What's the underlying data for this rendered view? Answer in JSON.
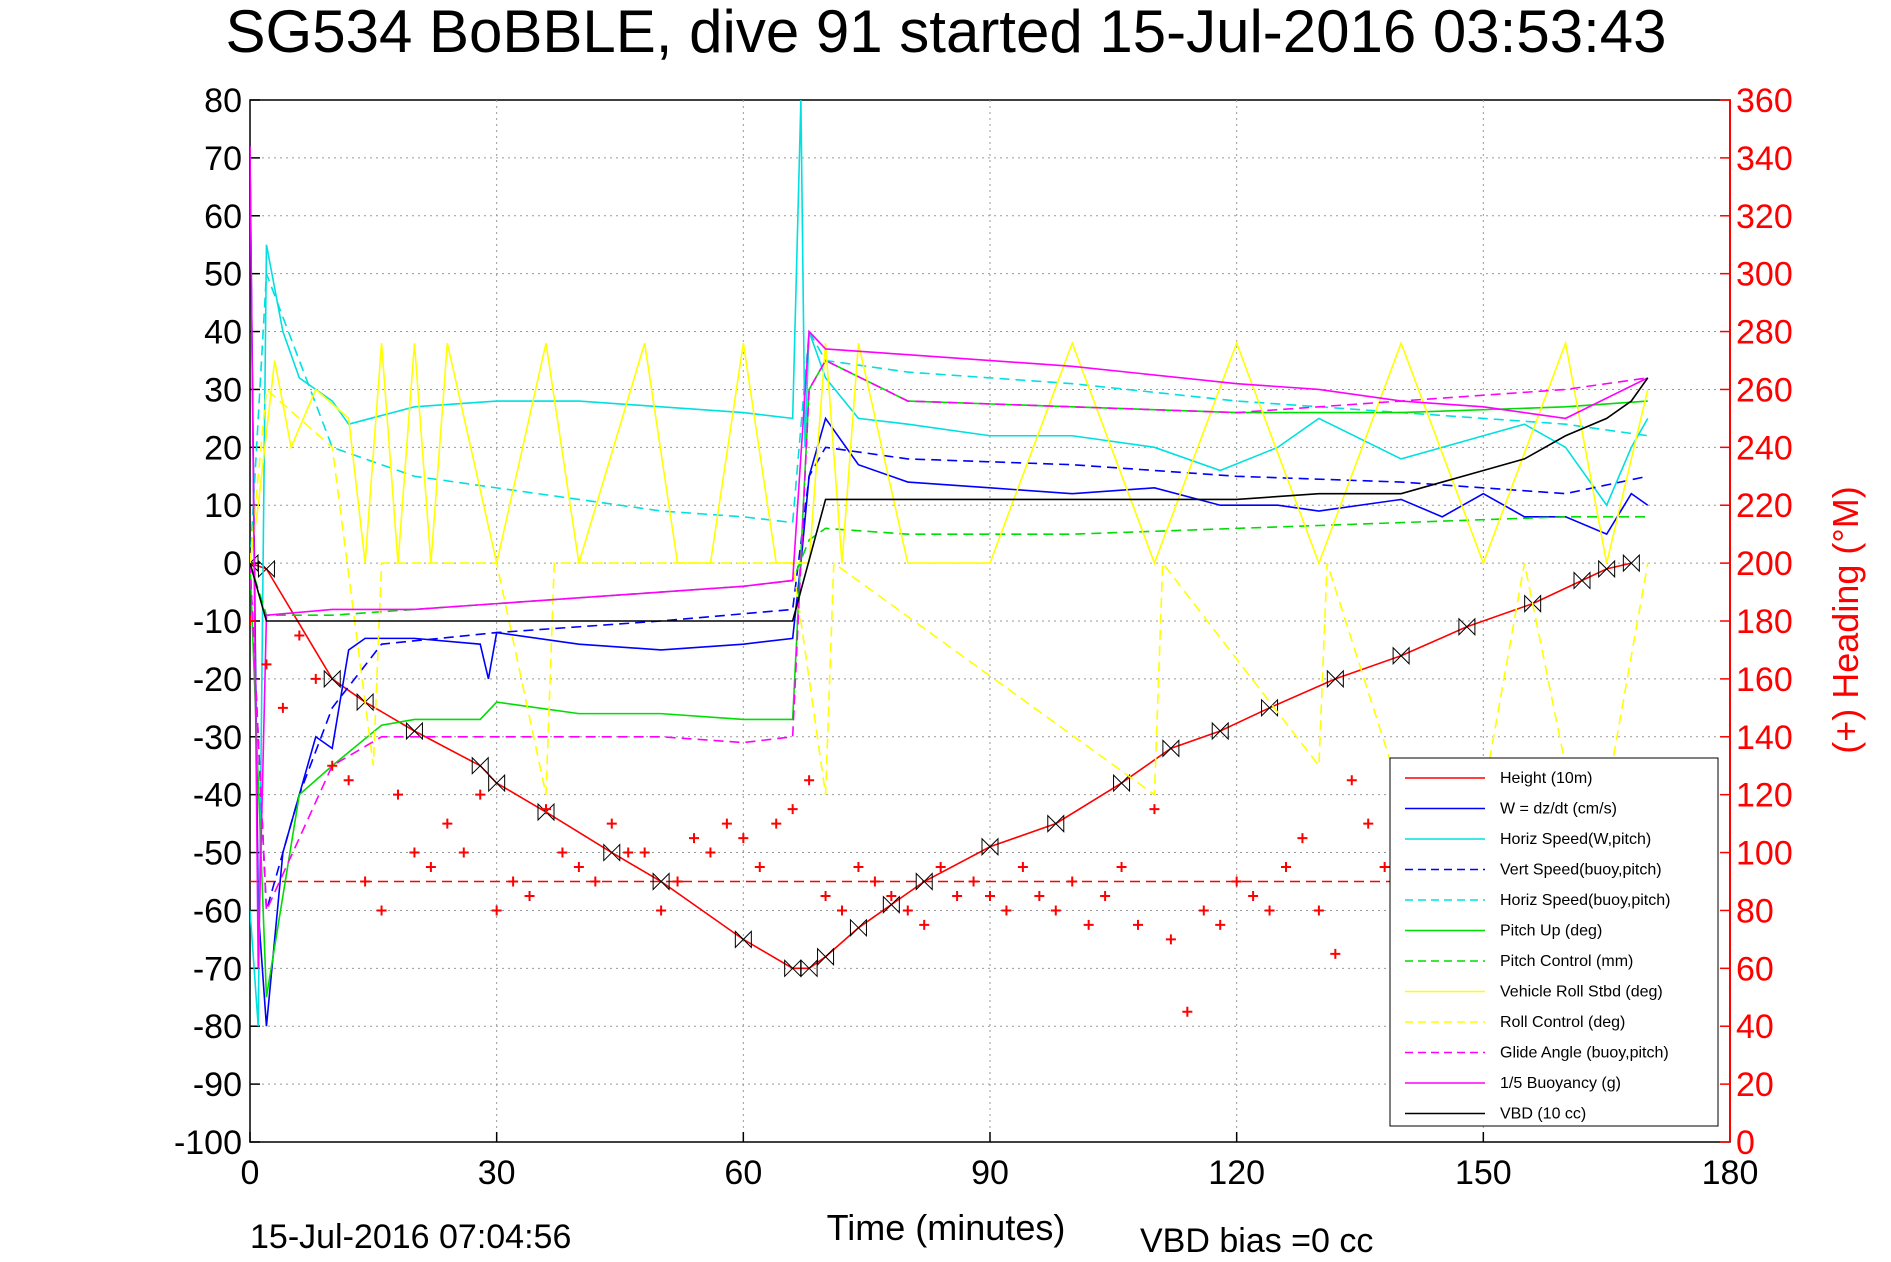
{
  "chart_data": {
    "type": "line",
    "title": "SG534 BoBBLE, dive 91 started 15-Jul-2016 03:53:43",
    "xlabel": "Time (minutes)",
    "ylabel": "",
    "ylabel_right": "(+) Heading (°M)",
    "xlim": [
      0,
      180
    ],
    "ylim": [
      -100,
      80
    ],
    "ylim_right": [
      0,
      360
    ],
    "grid": true,
    "x_ticks": [
      "0",
      "30",
      "60",
      "90",
      "120",
      "150",
      "180"
    ],
    "y_ticks_left": [
      "80",
      "70",
      "60",
      "50",
      "40",
      "30",
      "20",
      "10",
      "0",
      "-10",
      "-20",
      "-30",
      "-40",
      "-50",
      "-60",
      "-70",
      "-80",
      "-90",
      "-100"
    ],
    "y_ticks_right": [
      "360",
      "340",
      "320",
      "300",
      "280",
      "260",
      "240",
      "220",
      "200",
      "180",
      "160",
      "140",
      "120",
      "100",
      "80",
      "60",
      "40",
      "20",
      "0"
    ],
    "legend_position": "lower-right",
    "footer_left": "15-Jul-2016 07:04:56",
    "footer_right": "VBD bias =0 cc",
    "series": [
      {
        "name": "Height (10m)",
        "color": "#ff0000",
        "dash": "solid",
        "marker": "bowtie",
        "x": [
          0,
          2,
          10,
          14,
          20,
          28,
          30,
          36,
          44,
          50,
          60,
          66,
          68,
          70,
          74,
          78,
          82,
          90,
          98,
          106,
          112,
          118,
          124,
          132,
          140,
          148,
          156,
          162,
          165,
          168
        ],
        "y": [
          0,
          -1,
          -20,
          -24,
          -29,
          -35,
          -38,
          -43,
          -50,
          -55,
          -65,
          -70,
          -70,
          -68,
          -63,
          -59,
          -55,
          -49,
          -45,
          -38,
          -32,
          -29,
          -25,
          -20,
          -16,
          -11,
          -7,
          -3,
          -1,
          0
        ]
      },
      {
        "name": "W = dz/dt (cm/s)",
        "color": "#0000ff",
        "dash": "solid",
        "marker": "none",
        "x": [
          0,
          1,
          2,
          4,
          6,
          8,
          10,
          12,
          14,
          20,
          28,
          29,
          30,
          40,
          50,
          60,
          66,
          67,
          68,
          70,
          74,
          80,
          90,
          100,
          110,
          118,
          125,
          130,
          140,
          145,
          150,
          155,
          160,
          165,
          168,
          170
        ],
        "y": [
          70,
          -60,
          -80,
          -50,
          -40,
          -30,
          -32,
          -15,
          -13,
          -13,
          -14,
          -20,
          -12,
          -14,
          -15,
          -14,
          -13,
          0,
          15,
          25,
          17,
          14,
          13,
          12,
          13,
          10,
          10,
          9,
          11,
          8,
          12,
          8,
          8,
          5,
          12,
          10
        ]
      },
      {
        "name": "Horiz Speed(W,pitch)",
        "color": "#00e0e0",
        "dash": "solid",
        "marker": "none",
        "x": [
          0,
          1,
          2,
          4,
          6,
          10,
          12,
          20,
          30,
          40,
          50,
          60,
          66,
          67,
          67.5,
          68,
          70,
          74,
          80,
          90,
          100,
          110,
          118,
          125,
          130,
          140,
          145,
          150,
          155,
          160,
          165,
          168,
          170
        ],
        "y": [
          -60,
          -80,
          55,
          40,
          32,
          28,
          24,
          27,
          28,
          28,
          27,
          26,
          25,
          80,
          20,
          40,
          32,
          25,
          24,
          22,
          22,
          20,
          16,
          20,
          25,
          18,
          20,
          22,
          24,
          20,
          10,
          20,
          25
        ]
      },
      {
        "name": "Vert Speed(buoy,pitch)",
        "color": "#0000ff",
        "dash": "dashed",
        "marker": "none",
        "x": [
          0,
          2,
          6,
          10,
          16,
          30,
          50,
          66,
          68,
          70,
          80,
          100,
          120,
          140,
          160,
          170
        ],
        "y": [
          0,
          -60,
          -40,
          -25,
          -14,
          -12,
          -10,
          -8,
          15,
          20,
          18,
          17,
          15,
          14,
          12,
          15
        ]
      },
      {
        "name": "Horiz Speed(buoy,pitch)",
        "color": "#00e0e0",
        "dash": "dashed",
        "marker": "none",
        "x": [
          0,
          2,
          10,
          20,
          30,
          40,
          50,
          60,
          66,
          68,
          70,
          80,
          100,
          120,
          140,
          160,
          170
        ],
        "y": [
          0,
          50,
          20,
          15,
          13,
          11,
          9,
          8,
          7,
          40,
          35,
          33,
          31,
          28,
          26,
          24,
          22
        ]
      },
      {
        "name": "Pitch Up (deg)",
        "color": "#00dd00",
        "dash": "solid",
        "marker": "none",
        "x": [
          0,
          2,
          6,
          10,
          16,
          20,
          28,
          30,
          40,
          50,
          60,
          66,
          68,
          70,
          80,
          100,
          120,
          140,
          160,
          170
        ],
        "y": [
          0,
          -75,
          -40,
          -35,
          -28,
          -27,
          -27,
          -24,
          -26,
          -26,
          -27,
          -27,
          30,
          35,
          28,
          27,
          26,
          26,
          27,
          28
        ]
      },
      {
        "name": "Pitch Control (mm)",
        "color": "#00dd00",
        "dash": "dashed",
        "marker": "none",
        "x": [
          0,
          2,
          10,
          20,
          30,
          40,
          50,
          60,
          66,
          68,
          70,
          80,
          100,
          120,
          140,
          160,
          170
        ],
        "y": [
          0,
          -9,
          -9,
          -8,
          -7,
          -6,
          -5,
          -4,
          -3,
          4,
          6,
          5,
          5,
          6,
          7,
          8,
          8
        ]
      },
      {
        "name": "Vehicle Roll Stbd (deg)",
        "color": "#ffff00",
        "dash": "solid",
        "marker": "none",
        "x": [
          0,
          1,
          3,
          5,
          8,
          12,
          14,
          16,
          18,
          20,
          22,
          24,
          30,
          36,
          40,
          48,
          52,
          56,
          60,
          64,
          66,
          68,
          70,
          72,
          74,
          80,
          90,
          100,
          110,
          120,
          130,
          140,
          150,
          160,
          165,
          170
        ],
        "y": [
          0,
          10,
          35,
          20,
          30,
          25,
          0,
          38,
          0,
          38,
          0,
          38,
          0,
          38,
          0,
          38,
          0,
          0,
          38,
          0,
          0,
          0,
          38,
          0,
          38,
          0,
          0,
          38,
          0,
          38,
          0,
          38,
          0,
          38,
          0,
          30
        ]
      },
      {
        "name": "Roll Control (deg)",
        "color": "#ffff00",
        "dash": "dashed",
        "marker": "none",
        "x": [
          0,
          2,
          10,
          15,
          16,
          30,
          36,
          37,
          40,
          60,
          66,
          70,
          71,
          110,
          111,
          130,
          131,
          140,
          150,
          155,
          160,
          165,
          170
        ],
        "y": [
          0,
          30,
          20,
          -35,
          0,
          0,
          -40,
          0,
          0,
          0,
          0,
          -40,
          0,
          -40,
          0,
          -35,
          0,
          -40,
          -40,
          0,
          -35,
          -40,
          0
        ]
      },
      {
        "name": "Glide Angle (buoy,pitch)",
        "color": "#ff00ff",
        "dash": "dashed",
        "marker": "none",
        "x": [
          0,
          2,
          10,
          16,
          20,
          30,
          40,
          50,
          60,
          66,
          68,
          70,
          80,
          100,
          120,
          140,
          160,
          170
        ],
        "y": [
          0,
          -60,
          -35,
          -30,
          -30,
          -30,
          -30,
          -30,
          -31,
          -30,
          30,
          35,
          28,
          27,
          26,
          28,
          30,
          32
        ]
      },
      {
        "name": "1/5 Buoyancy (g)",
        "color": "#ff00ff",
        "dash": "solid",
        "marker": "none",
        "x": [
          0,
          1,
          2,
          10,
          20,
          30,
          40,
          50,
          60,
          66,
          68,
          70,
          80,
          100,
          120,
          130,
          140,
          150,
          160,
          170
        ],
        "y": [
          72,
          -70,
          -9,
          -8,
          -8,
          -7,
          -6,
          -5,
          -4,
          -3,
          40,
          37,
          36,
          34,
          31,
          30,
          28,
          27,
          25,
          32
        ]
      },
      {
        "name": "VBD (10 cc)",
        "color": "#000000",
        "dash": "solid",
        "marker": "none",
        "x": [
          0,
          2,
          10,
          20,
          30,
          40,
          50,
          60,
          66,
          70,
          80,
          100,
          120,
          130,
          140,
          145,
          150,
          155,
          160,
          165,
          168,
          170
        ],
        "y": [
          0,
          -10,
          -10,
          -10,
          -10,
          -10,
          -10,
          -10,
          -10,
          11,
          11,
          11,
          11,
          12,
          12,
          14,
          16,
          18,
          22,
          25,
          28,
          32
        ]
      },
      {
        "name": "(+) Heading",
        "color": "#ff0000",
        "dash": "none",
        "marker": "plus",
        "axis": "right",
        "x": [
          0,
          2,
          4,
          6,
          8,
          10,
          12,
          14,
          16,
          18,
          20,
          22,
          24,
          26,
          28,
          30,
          32,
          34,
          36,
          38,
          40,
          42,
          44,
          46,
          48,
          50,
          52,
          54,
          56,
          58,
          60,
          62,
          64,
          66,
          68,
          70,
          72,
          74,
          76,
          78,
          80,
          82,
          84,
          86,
          88,
          90,
          92,
          94,
          96,
          98,
          100,
          102,
          104,
          106,
          108,
          110,
          112,
          114,
          116,
          118,
          120,
          122,
          124,
          126,
          128,
          130,
          132,
          134,
          136,
          138
        ],
        "y": [
          180,
          165,
          150,
          175,
          160,
          130,
          125,
          90,
          80,
          120,
          100,
          95,
          110,
          100,
          120,
          80,
          90,
          85,
          115,
          100,
          95,
          90,
          110,
          100,
          100,
          80,
          90,
          105,
          100,
          110,
          105,
          95,
          110,
          115,
          125,
          85,
          80,
          95,
          90,
          85,
          80,
          75,
          95,
          85,
          90,
          85,
          80,
          95,
          85,
          80,
          90,
          75,
          85,
          95,
          75,
          115,
          70,
          45,
          80,
          75,
          90,
          85,
          80,
          95,
          105,
          80,
          65,
          125,
          110,
          95
        ]
      }
    ],
    "heading_mean": 90
  }
}
